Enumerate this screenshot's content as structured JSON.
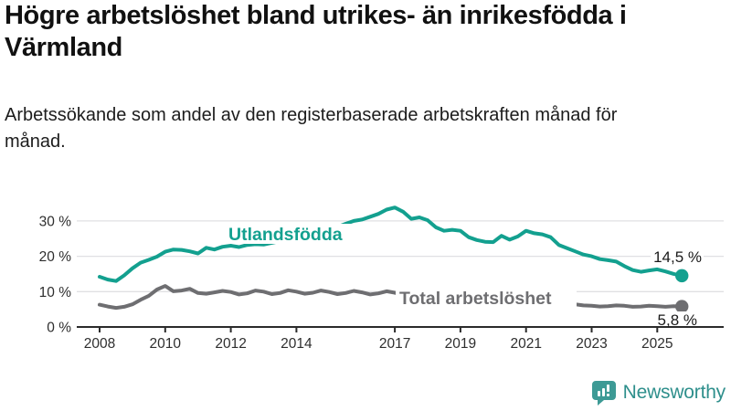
{
  "title": "Högre arbetslöshet bland utrikes- än inrikesfödda i Värmland",
  "subtitle": "Arbetssökande som andel av den registerbaserade arbetskraften månad för månad.",
  "branding": {
    "logo_text": "Newsworthy",
    "logo_icon": "bar-chart-speech-bubble-icon"
  },
  "colors": {
    "foreign_born_line": "#13a08f",
    "total_line": "#6e6e71",
    "gridline": "#e0e0e3",
    "axis": "#2b2b2b",
    "logo_teal": "#3d9a95",
    "logo_text_teal": "#2e8f8c"
  },
  "chart_data": {
    "type": "line",
    "title": "Högre arbetslöshet bland utrikes- än inrikesfödda i Värmland",
    "subtitle": "Arbetssökande som andel av den registerbaserade arbetskraften månad för månad.",
    "xlabel": "",
    "ylabel": "",
    "grid": "horizontal",
    "legend_position": "inline-labels",
    "xlim": [
      2008,
      2025.9
    ],
    "ylim": [
      0,
      35
    ],
    "x_ticks": [
      2008,
      2010,
      2012,
      2014,
      2017,
      2019,
      2021,
      2023,
      2025
    ],
    "x_tick_labels": [
      "2008",
      "2010",
      "2012",
      "2014",
      "2017",
      "2019",
      "2021",
      "2023",
      "2025"
    ],
    "y_ticks": [
      0,
      10,
      20,
      30
    ],
    "y_tick_labels": [
      "0 %",
      "10 %",
      "20 %",
      "30 %"
    ],
    "x": [
      2008.0,
      2008.25,
      2008.5,
      2008.75,
      2009.0,
      2009.25,
      2009.5,
      2009.75,
      2010.0,
      2010.25,
      2010.5,
      2010.75,
      2011.0,
      2011.25,
      2011.5,
      2011.75,
      2012.0,
      2012.25,
      2012.5,
      2012.75,
      2013.0,
      2013.25,
      2013.5,
      2013.75,
      2014.0,
      2014.25,
      2014.5,
      2014.75,
      2015.0,
      2015.25,
      2015.5,
      2015.75,
      2016.0,
      2016.25,
      2016.5,
      2016.75,
      2017.0,
      2017.25,
      2017.5,
      2017.75,
      2018.0,
      2018.25,
      2018.5,
      2018.75,
      2019.0,
      2019.25,
      2019.5,
      2019.75,
      2020.0,
      2020.25,
      2020.5,
      2020.75,
      2021.0,
      2021.25,
      2021.5,
      2021.75,
      2022.0,
      2022.25,
      2022.5,
      2022.75,
      2023.0,
      2023.25,
      2023.5,
      2023.75,
      2024.0,
      2024.25,
      2024.5,
      2024.75,
      2025.0,
      2025.25,
      2025.5,
      2025.75
    ],
    "series": [
      {
        "name": "Utlandsfödda",
        "color": "#13a08f",
        "end_value": 14.5,
        "end_label": "14,5 %",
        "values": [
          14.2,
          13.4,
          13.0,
          14.6,
          16.6,
          18.2,
          19.0,
          19.9,
          21.3,
          21.9,
          21.8,
          21.4,
          20.8,
          22.4,
          21.9,
          22.7,
          23.0,
          22.6,
          23.2,
          23.4,
          23.3,
          23.8,
          24.3,
          24.8,
          25.2,
          25.8,
          26.4,
          27.0,
          27.6,
          28.3,
          29.2,
          30.0,
          30.4,
          31.2,
          32.0,
          33.2,
          33.8,
          32.6,
          30.6,
          31.0,
          30.2,
          28.2,
          27.2,
          27.5,
          27.2,
          25.4,
          24.6,
          24.1,
          24.0,
          25.8,
          24.7,
          25.6,
          27.2,
          26.5,
          26.2,
          25.4,
          23.2,
          22.3,
          21.4,
          20.5,
          20.0,
          19.2,
          18.9,
          18.5,
          17.2,
          16.1,
          15.6,
          16.0,
          16.3,
          15.7,
          15.0,
          14.5
        ]
      },
      {
        "name": "Total arbetslöshet",
        "color": "#6e6e71",
        "end_value": 5.8,
        "end_label": "5,8 %",
        "values": [
          6.3,
          5.8,
          5.4,
          5.7,
          6.4,
          7.7,
          8.8,
          10.6,
          11.6,
          10.1,
          10.3,
          10.8,
          9.6,
          9.4,
          9.8,
          10.2,
          9.9,
          9.2,
          9.5,
          10.3,
          10.0,
          9.3,
          9.6,
          10.4,
          10.0,
          9.4,
          9.7,
          10.3,
          9.9,
          9.3,
          9.6,
          10.2,
          9.8,
          9.2,
          9.5,
          10.1,
          9.7,
          9.1,
          9.3,
          9.8,
          9.4,
          8.8,
          8.9,
          9.2,
          8.9,
          8.5,
          8.6,
          8.9,
          8.8,
          9.6,
          9.3,
          9.0,
          9.2,
          8.6,
          8.1,
          7.6,
          7.2,
          6.8,
          6.4,
          6.1,
          6.0,
          5.8,
          5.9,
          6.1,
          6.0,
          5.7,
          5.8,
          6.0,
          5.9,
          5.7,
          5.9,
          5.8
        ]
      }
    ]
  }
}
